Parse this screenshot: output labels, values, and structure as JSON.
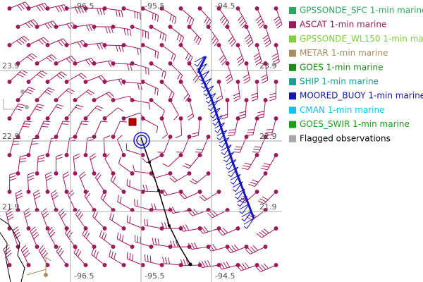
{
  "map": {
    "lon_top": [
      -96.5,
      -95.5,
      -94.5
    ],
    "lon_bottom": [
      -96.5,
      -95.5,
      -94.5
    ],
    "lat_left": [
      23.9,
      22.9,
      21.9
    ],
    "lat_right": [
      23.9,
      22.9,
      21.9
    ]
  },
  "legend": [
    {
      "label": "GPSSONDE_SFC 1-min marine",
      "color": "#2aa860"
    },
    {
      "label": "ASCAT 1-min marine",
      "color": "#a0185c"
    },
    {
      "label": "GPSSONDE_WL150 1-min marine",
      "color": "#80d03a"
    },
    {
      "label": "METAR 1-min marine",
      "color": "#a98b5c"
    },
    {
      "label": "GOES 1-min marine",
      "color": "#1a8a1a"
    },
    {
      "label": "SHIP 1-min marine",
      "color": "#18a097"
    },
    {
      "label": "MOORED_BUOY 1-min marine",
      "color": "#1414b0"
    },
    {
      "label": "CMAN 1-min marine",
      "color": "#14c0f0"
    },
    {
      "label": "GOES_SWIR 1-min marine",
      "color": "#18a018"
    },
    {
      "label": "Flagged observations",
      "color": "#a8a8a8"
    }
  ]
}
